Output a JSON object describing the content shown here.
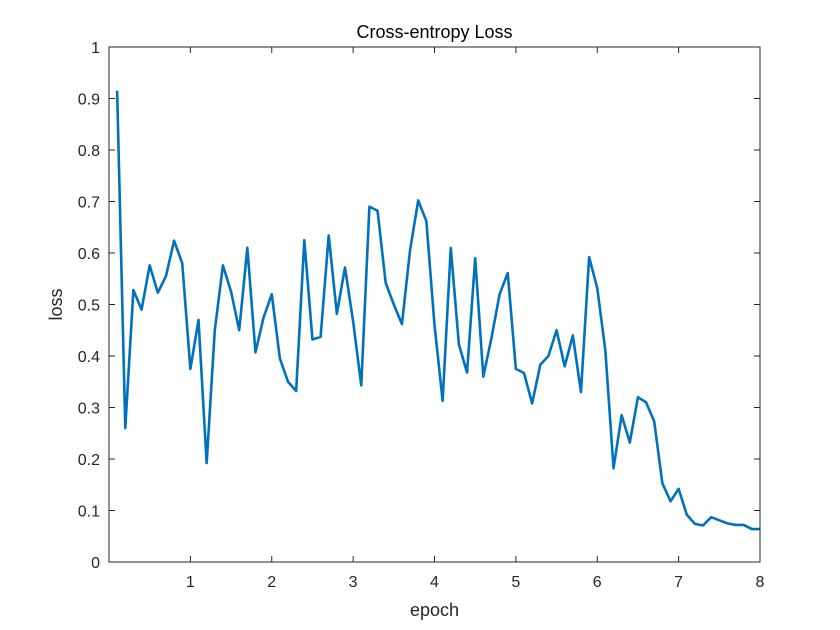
{
  "chart_data": {
    "type": "line",
    "title": "Cross-entropy Loss",
    "xlabel": "epoch",
    "ylabel": "loss",
    "xlim": [
      0,
      8
    ],
    "ylim": [
      0,
      1
    ],
    "xticks": [
      1,
      2,
      3,
      4,
      5,
      6,
      7,
      8
    ],
    "yticks": [
      0,
      0.1,
      0.2,
      0.3,
      0.4,
      0.5,
      0.6,
      0.7,
      0.8,
      0.9,
      1
    ],
    "ytick_labels": [
      "0",
      "0.1",
      "0.2",
      "0.3",
      "0.4",
      "0.5",
      "0.6",
      "0.7",
      "0.8",
      "0.9",
      "1"
    ],
    "xtick_labels": [
      "1",
      "2",
      "3",
      "4",
      "5",
      "6",
      "7",
      "8"
    ],
    "grid": false,
    "box": true,
    "line_color": "#0072BD",
    "series": [
      {
        "x": [
          0.1,
          0.2,
          0.3,
          0.4,
          0.5,
          0.6,
          0.7,
          0.8,
          0.9,
          1.0,
          1.1,
          1.2,
          1.3,
          1.4,
          1.5,
          1.6,
          1.7,
          1.8,
          1.9,
          2.0,
          2.1,
          2.2,
          2.3,
          2.4,
          2.5,
          2.6,
          2.7,
          2.8,
          2.9,
          3.0,
          3.1,
          3.2,
          3.3,
          3.4,
          3.5,
          3.6,
          3.7,
          3.8,
          3.9,
          4.0,
          4.1,
          4.2,
          4.3,
          4.4,
          4.5,
          4.6,
          4.7,
          4.8,
          4.9,
          5.0,
          5.1,
          5.2,
          5.3,
          5.4,
          5.5,
          5.6,
          5.7,
          5.8,
          5.9,
          6.0,
          6.1,
          6.2,
          6.3,
          6.4,
          6.5,
          6.6,
          6.7,
          6.8,
          6.9,
          7.0,
          7.1,
          7.2,
          7.3,
          7.4,
          7.5,
          7.6,
          7.7,
          7.8,
          7.9,
          8.0
        ],
        "values": [
          0.915,
          0.26,
          0.528,
          0.49,
          0.576,
          0.523,
          0.555,
          0.624,
          0.58,
          0.375,
          0.47,
          0.192,
          0.45,
          0.576,
          0.525,
          0.45,
          0.61,
          0.407,
          0.475,
          0.52,
          0.395,
          0.35,
          0.332,
          0.625,
          0.432,
          0.437,
          0.634,
          0.482,
          0.572,
          0.467,
          0.343,
          0.69,
          0.682,
          0.542,
          0.5,
          0.462,
          0.606,
          0.702,
          0.662,
          0.46,
          0.313,
          0.61,
          0.422,
          0.368,
          0.59,
          0.36,
          0.435,
          0.52,
          0.561,
          0.375,
          0.367,
          0.308,
          0.383,
          0.4,
          0.45,
          0.38,
          0.44,
          0.33,
          0.592,
          0.532,
          0.41,
          0.182,
          0.285,
          0.232,
          0.32,
          0.31,
          0.273,
          0.153,
          0.118,
          0.142,
          0.092,
          0.074,
          0.071,
          0.087,
          0.081,
          0.075,
          0.072,
          0.072,
          0.064,
          0.064
        ]
      }
    ]
  }
}
